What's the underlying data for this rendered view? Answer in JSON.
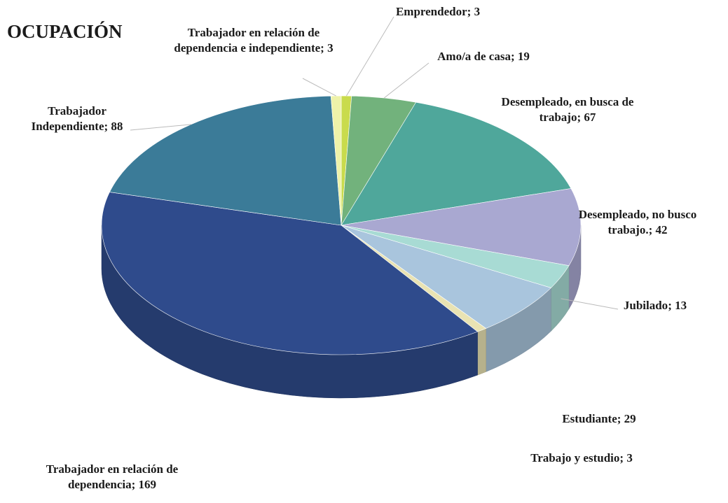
{
  "chart_data": {
    "type": "pie",
    "title": "OCUPACIÓN",
    "categories": [
      "Emprendedor",
      "Amo/a de casa",
      "Desempleado, en busca de trabajo",
      "Desempleado, no busco trabajo.",
      "Jubilado",
      "Estudiante",
      "Trabajo y estudio",
      "Trabajador en relación de dependencia",
      "Trabajador Independiente",
      "Trabajador en relación de dependencia e independiente"
    ],
    "values": [
      3,
      19,
      67,
      42,
      13,
      29,
      3,
      169,
      88,
      3
    ],
    "colors": [
      "#c9db4c",
      "#72b27c",
      "#4fa79b",
      "#a9a8d1",
      "#a8dbd4",
      "#a9c5dd",
      "#e9e3b3",
      "#2f4b8c",
      "#3b7b98",
      "#eef2a9"
    ]
  }
}
